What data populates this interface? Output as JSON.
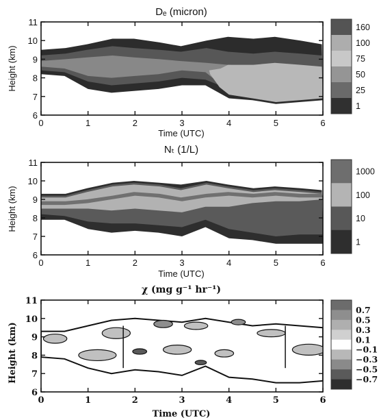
{
  "chart_data": [
    {
      "type": "heatmap",
      "title": "Dₑ (micron)",
      "xlabel": "Time (UTC)",
      "ylabel": "Height (km)",
      "xlim": [
        0,
        6
      ],
      "ylim": [
        6,
        11
      ],
      "xticks": [
        "0",
        "1",
        "2",
        "3",
        "4",
        "5",
        "6"
      ],
      "yticks": [
        "6",
        "7",
        "8",
        "9",
        "10",
        "11"
      ],
      "colorbar": {
        "labels": [
          "160",
          "100",
          "75",
          "50",
          "25",
          "1"
        ],
        "colors": [
          "#545454",
          "#adadad",
          "#c8c8c8",
          "#959595",
          "#6a6a6a",
          "#303030"
        ]
      },
      "layers": [
        {
          "color": "#2c2c2c",
          "x": [
            0.0,
            0.5,
            1.0,
            1.5,
            2.0,
            2.5,
            3.0,
            3.5,
            4.0,
            4.5,
            5.0,
            5.5,
            6.0
          ],
          "bottom": [
            8.2,
            8.1,
            7.4,
            7.2,
            7.3,
            7.4,
            7.6,
            7.6,
            6.9,
            6.8,
            6.6,
            6.7,
            6.8
          ],
          "top": [
            9.5,
            9.6,
            9.8,
            10.1,
            10.1,
            9.9,
            9.7,
            10.0,
            10.2,
            10.1,
            10.2,
            10.0,
            9.8
          ]
        },
        {
          "color": "#575757",
          "x": [
            0.0,
            0.5,
            1.0,
            1.5,
            2.0,
            2.5,
            3.0,
            3.5,
            4.0,
            4.5,
            5.0,
            5.5,
            6.0
          ],
          "bottom": [
            8.4,
            8.3,
            7.8,
            7.6,
            7.7,
            7.8,
            8.0,
            7.9,
            7.4,
            7.2,
            7.0,
            7.1,
            7.2
          ],
          "top": [
            9.2,
            9.3,
            9.5,
            9.7,
            9.6,
            9.5,
            9.4,
            9.6,
            9.4,
            9.3,
            9.4,
            9.3,
            9.2
          ]
        },
        {
          "color": "#888888",
          "x": [
            0.0,
            0.5,
            1.0,
            1.5,
            2.0,
            2.5,
            3.0,
            3.5,
            4.0,
            4.5,
            5.0,
            5.5,
            6.0
          ],
          "bottom": [
            8.6,
            8.5,
            8.1,
            8.0,
            8.1,
            8.2,
            8.4,
            8.3,
            7.3,
            7.1,
            6.9,
            7.0,
            7.1
          ],
          "top": [
            8.9,
            9.0,
            9.1,
            9.2,
            9.1,
            9.0,
            8.9,
            8.8,
            8.7,
            8.6,
            8.7,
            8.6,
            8.5
          ]
        },
        {
          "color": "#b8b8b8",
          "x": [
            3.6,
            3.8,
            4.0,
            4.5,
            5.0,
            5.5,
            6.0
          ],
          "bottom": [
            8.2,
            7.5,
            7.1,
            6.9,
            6.7,
            6.8,
            6.9
          ],
          "top": [
            8.4,
            8.5,
            8.7,
            8.7,
            8.8,
            8.7,
            8.6
          ]
        }
      ]
    },
    {
      "type": "heatmap",
      "title": "Nₜ (1/L)",
      "xlabel": "Time (UTC)",
      "ylabel": "Height (km)",
      "xlim": [
        0,
        6
      ],
      "ylim": [
        6,
        11
      ],
      "xticks": [
        "0",
        "1",
        "2",
        "3",
        "4",
        "5",
        "6"
      ],
      "yticks": [
        "6",
        "7",
        "8",
        "9",
        "10",
        "11"
      ],
      "colorbar": {
        "labels": [
          "1000",
          "100",
          "10",
          "1"
        ],
        "colors": [
          "#6e6e6e",
          "#b4b4b4",
          "#585858",
          "#2e2e2e"
        ]
      },
      "layers": [
        {
          "color": "#2e2e2e",
          "x": [
            0.0,
            0.5,
            1.0,
            1.5,
            2.0,
            2.5,
            3.0,
            3.5,
            4.0,
            4.5,
            5.0,
            5.5,
            6.0
          ],
          "bottom": [
            7.9,
            7.9,
            7.4,
            7.2,
            7.3,
            7.2,
            7.0,
            7.5,
            6.9,
            6.8,
            6.6,
            6.6,
            6.6
          ],
          "top": [
            9.3,
            9.3,
            9.6,
            9.9,
            10.0,
            9.9,
            9.8,
            10.0,
            9.8,
            9.6,
            9.7,
            9.6,
            9.5
          ]
        },
        {
          "color": "#5a5a5a",
          "x": [
            0.0,
            0.5,
            1.0,
            1.5,
            2.0,
            2.5,
            3.0,
            3.5,
            4.0,
            4.5,
            5.0,
            5.5,
            6.0
          ],
          "bottom": [
            8.2,
            8.1,
            7.8,
            7.7,
            7.7,
            7.6,
            7.5,
            7.9,
            7.4,
            7.2,
            7.0,
            7.1,
            7.1
          ],
          "top": [
            9.2,
            9.2,
            9.5,
            9.8,
            9.9,
            9.8,
            9.6,
            9.9,
            9.7,
            9.5,
            9.6,
            9.5,
            9.4
          ]
        },
        {
          "color": "#b2b2b2",
          "x": [
            0.0,
            0.5,
            1.0,
            1.5,
            2.0,
            2.5,
            3.0,
            3.5,
            4.0,
            4.5,
            5.0,
            5.5,
            6.0
          ],
          "bottom": [
            8.5,
            8.5,
            8.5,
            8.4,
            8.5,
            8.4,
            8.3,
            8.6,
            8.6,
            8.8,
            8.9,
            8.9,
            9.0
          ],
          "top": [
            9.1,
            9.1,
            9.4,
            9.7,
            9.8,
            9.7,
            9.5,
            9.8,
            9.6,
            9.4,
            9.5,
            9.4,
            9.3
          ]
        },
        {
          "color": "#707070",
          "x": [
            0.0,
            0.5,
            1.0,
            1.5,
            2.0,
            2.5,
            3.0,
            3.5,
            4.0,
            4.5,
            5.0,
            5.5,
            6.0
          ],
          "bottom": [
            8.7,
            8.7,
            8.8,
            9.0,
            9.2,
            9.1,
            8.9,
            9.1,
            9.2,
            9.1,
            9.2,
            9.1,
            9.1
          ],
          "top": [
            8.9,
            8.9,
            9.0,
            9.2,
            9.4,
            9.3,
            9.1,
            9.3,
            9.4,
            9.3,
            9.4,
            9.3,
            9.3
          ]
        }
      ]
    },
    {
      "type": "heatmap",
      "title": "χ (mg g⁻¹ hr⁻¹)",
      "xlabel": "Time (UTC)",
      "ylabel": "Height (km)",
      "xlim": [
        0,
        6
      ],
      "ylim": [
        6,
        11
      ],
      "xticks": [
        "0",
        "1",
        "2",
        "3",
        "4",
        "5",
        "6"
      ],
      "yticks": [
        "6",
        "7",
        "8",
        "9",
        "10",
        "11"
      ],
      "colorbar": {
        "labels": [
          "0.7",
          "0.5",
          "0.3",
          "0.1",
          "−0.1",
          "−0.3",
          "−0.5",
          "−0.7"
        ],
        "colors": [
          "#6c6c6c",
          "#8e8e8e",
          "#afafaf",
          "#d0d0d0",
          "#ffffff",
          "#b8b8b8",
          "#8a8a8a",
          "#5a5a5a",
          "#2e2e2e"
        ]
      },
      "outline": {
        "x": [
          0.0,
          0.5,
          1.0,
          1.5,
          2.0,
          2.5,
          3.0,
          3.5,
          4.0,
          4.5,
          5.0,
          5.5,
          6.0
        ],
        "bottom": [
          7.9,
          7.8,
          7.3,
          7.0,
          7.2,
          7.1,
          6.9,
          7.4,
          6.8,
          6.7,
          6.5,
          6.5,
          6.6
        ],
        "top": [
          9.3,
          9.3,
          9.6,
          9.9,
          10.0,
          9.9,
          9.8,
          10.0,
          9.8,
          9.6,
          9.7,
          9.6,
          9.5
        ]
      },
      "blobs": [
        {
          "color": "#c0c0c0",
          "x": 0.3,
          "y": 8.9,
          "rx": 0.25,
          "ry": 0.25
        },
        {
          "color": "#c0c0c0",
          "x": 1.6,
          "y": 9.2,
          "rx": 0.3,
          "ry": 0.3
        },
        {
          "color": "#c0c0c0",
          "x": 1.2,
          "y": 8.0,
          "rx": 0.4,
          "ry": 0.3
        },
        {
          "color": "#c0c0c0",
          "x": 2.9,
          "y": 8.3,
          "rx": 0.3,
          "ry": 0.25
        },
        {
          "color": "#c0c0c0",
          "x": 3.3,
          "y": 9.6,
          "rx": 0.25,
          "ry": 0.2
        },
        {
          "color": "#c0c0c0",
          "x": 3.9,
          "y": 8.1,
          "rx": 0.2,
          "ry": 0.2
        },
        {
          "color": "#c0c0c0",
          "x": 4.9,
          "y": 9.2,
          "rx": 0.3,
          "ry": 0.2
        },
        {
          "color": "#c0c0c0",
          "x": 5.7,
          "y": 8.3,
          "rx": 0.35,
          "ry": 0.3
        },
        {
          "color": "#8e8e8e",
          "x": 2.6,
          "y": 9.7,
          "rx": 0.2,
          "ry": 0.2
        },
        {
          "color": "#8e8e8e",
          "x": 4.2,
          "y": 9.8,
          "rx": 0.15,
          "ry": 0.15
        },
        {
          "color": "#5a5a5a",
          "x": 2.1,
          "y": 8.2,
          "rx": 0.15,
          "ry": 0.15
        },
        {
          "color": "#5a5a5a",
          "x": 3.4,
          "y": 7.6,
          "rx": 0.12,
          "ry": 0.12
        }
      ],
      "vlines": [
        1.75,
        5.2
      ]
    }
  ]
}
